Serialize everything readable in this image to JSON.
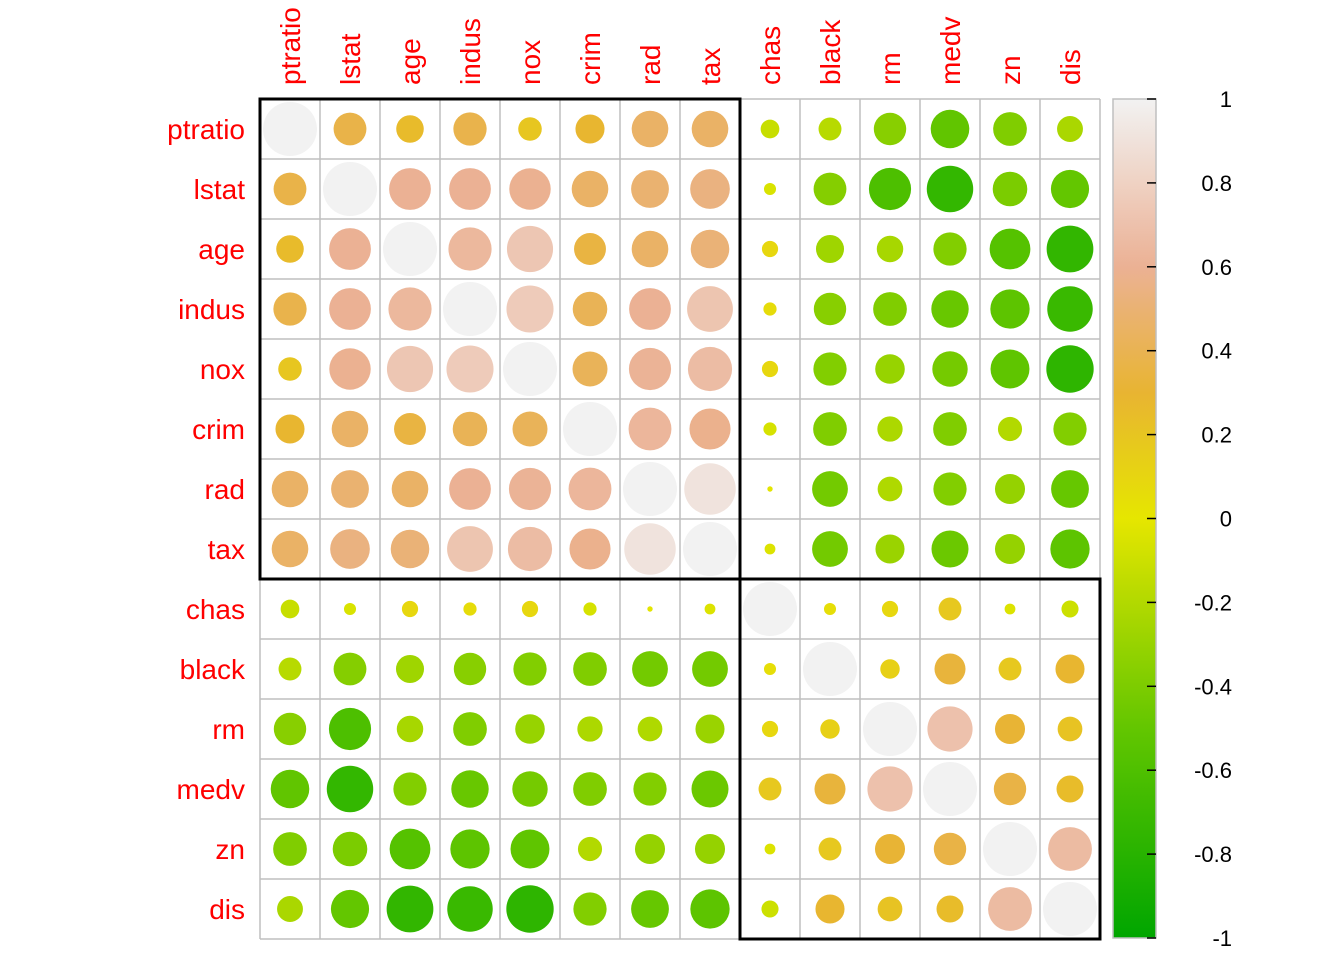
{
  "chart_data": {
    "type": "heatmap",
    "style": "corrplot-circle",
    "variables": [
      "ptratio",
      "lstat",
      "age",
      "indus",
      "nox",
      "crim",
      "rad",
      "tax",
      "chas",
      "black",
      "rm",
      "medv",
      "zn",
      "dis"
    ],
    "matrix": [
      [
        1.0,
        0.37,
        0.26,
        0.38,
        0.19,
        0.29,
        0.46,
        0.46,
        -0.12,
        -0.18,
        -0.36,
        -0.51,
        -0.39,
        -0.23
      ],
      [
        0.37,
        1.0,
        0.6,
        0.6,
        0.59,
        0.46,
        0.49,
        0.54,
        -0.05,
        -0.37,
        -0.61,
        -0.74,
        -0.41,
        -0.5
      ],
      [
        0.26,
        0.6,
        1.0,
        0.64,
        0.73,
        0.35,
        0.46,
        0.51,
        0.09,
        -0.27,
        -0.24,
        -0.38,
        -0.57,
        -0.75
      ],
      [
        0.38,
        0.6,
        0.64,
        1.0,
        0.76,
        0.41,
        0.6,
        0.72,
        0.06,
        -0.36,
        -0.39,
        -0.48,
        -0.53,
        -0.71
      ],
      [
        0.19,
        0.59,
        0.73,
        0.76,
        1.0,
        0.42,
        0.61,
        0.67,
        0.09,
        -0.38,
        -0.3,
        -0.43,
        -0.52,
        -0.77
      ],
      [
        0.29,
        0.46,
        0.35,
        0.41,
        0.42,
        1.0,
        0.63,
        0.58,
        -0.06,
        -0.39,
        -0.22,
        -0.39,
        -0.2,
        -0.38
      ],
      [
        0.46,
        0.49,
        0.46,
        0.6,
        0.61,
        0.63,
        1.0,
        0.91,
        -0.01,
        -0.44,
        -0.21,
        -0.38,
        -0.31,
        -0.49
      ],
      [
        0.46,
        0.54,
        0.51,
        0.72,
        0.67,
        0.58,
        0.91,
        1.0,
        -0.04,
        -0.44,
        -0.29,
        -0.47,
        -0.31,
        -0.53
      ],
      [
        -0.12,
        -0.05,
        0.09,
        0.06,
        0.09,
        -0.06,
        -0.01,
        -0.04,
        1.0,
        0.05,
        0.09,
        0.18,
        -0.04,
        -0.1
      ],
      [
        -0.18,
        -0.37,
        -0.27,
        -0.36,
        -0.38,
        -0.39,
        -0.44,
        -0.44,
        0.05,
        1.0,
        0.13,
        0.33,
        0.18,
        0.29
      ],
      [
        -0.36,
        -0.61,
        -0.24,
        -0.39,
        -0.3,
        -0.22,
        -0.21,
        -0.29,
        0.09,
        0.13,
        1.0,
        0.7,
        0.31,
        0.21
      ],
      [
        -0.51,
        -0.74,
        -0.38,
        -0.48,
        -0.43,
        -0.39,
        -0.38,
        -0.47,
        0.18,
        0.33,
        0.7,
        1.0,
        0.36,
        0.25
      ],
      [
        -0.39,
        -0.41,
        -0.57,
        -0.53,
        -0.52,
        -0.2,
        -0.31,
        -0.31,
        -0.04,
        0.18,
        0.31,
        0.36,
        1.0,
        0.66
      ],
      [
        -0.23,
        -0.5,
        -0.75,
        -0.71,
        -0.77,
        -0.38,
        -0.49,
        -0.53,
        -0.1,
        0.29,
        0.21,
        0.25,
        0.66,
        1.0
      ]
    ],
    "clusters": [
      {
        "from": "ptratio",
        "to": "tax"
      },
      {
        "from": "chas",
        "to": "dis"
      }
    ],
    "colorbar": {
      "range": [
        -1,
        1
      ],
      "ticks": [
        "1",
        "0.8",
        "0.6",
        "0.4",
        "0.2",
        "0",
        "-0.2",
        "-0.4",
        "-0.6",
        "-0.8",
        "-1"
      ]
    },
    "colors": {
      "label": "#ff0000",
      "grid": "#bfbfbf",
      "cluster_border": "#000000",
      "high": "#f2f2f2",
      "mid": "#e6e600",
      "low": "#00a600"
    }
  }
}
